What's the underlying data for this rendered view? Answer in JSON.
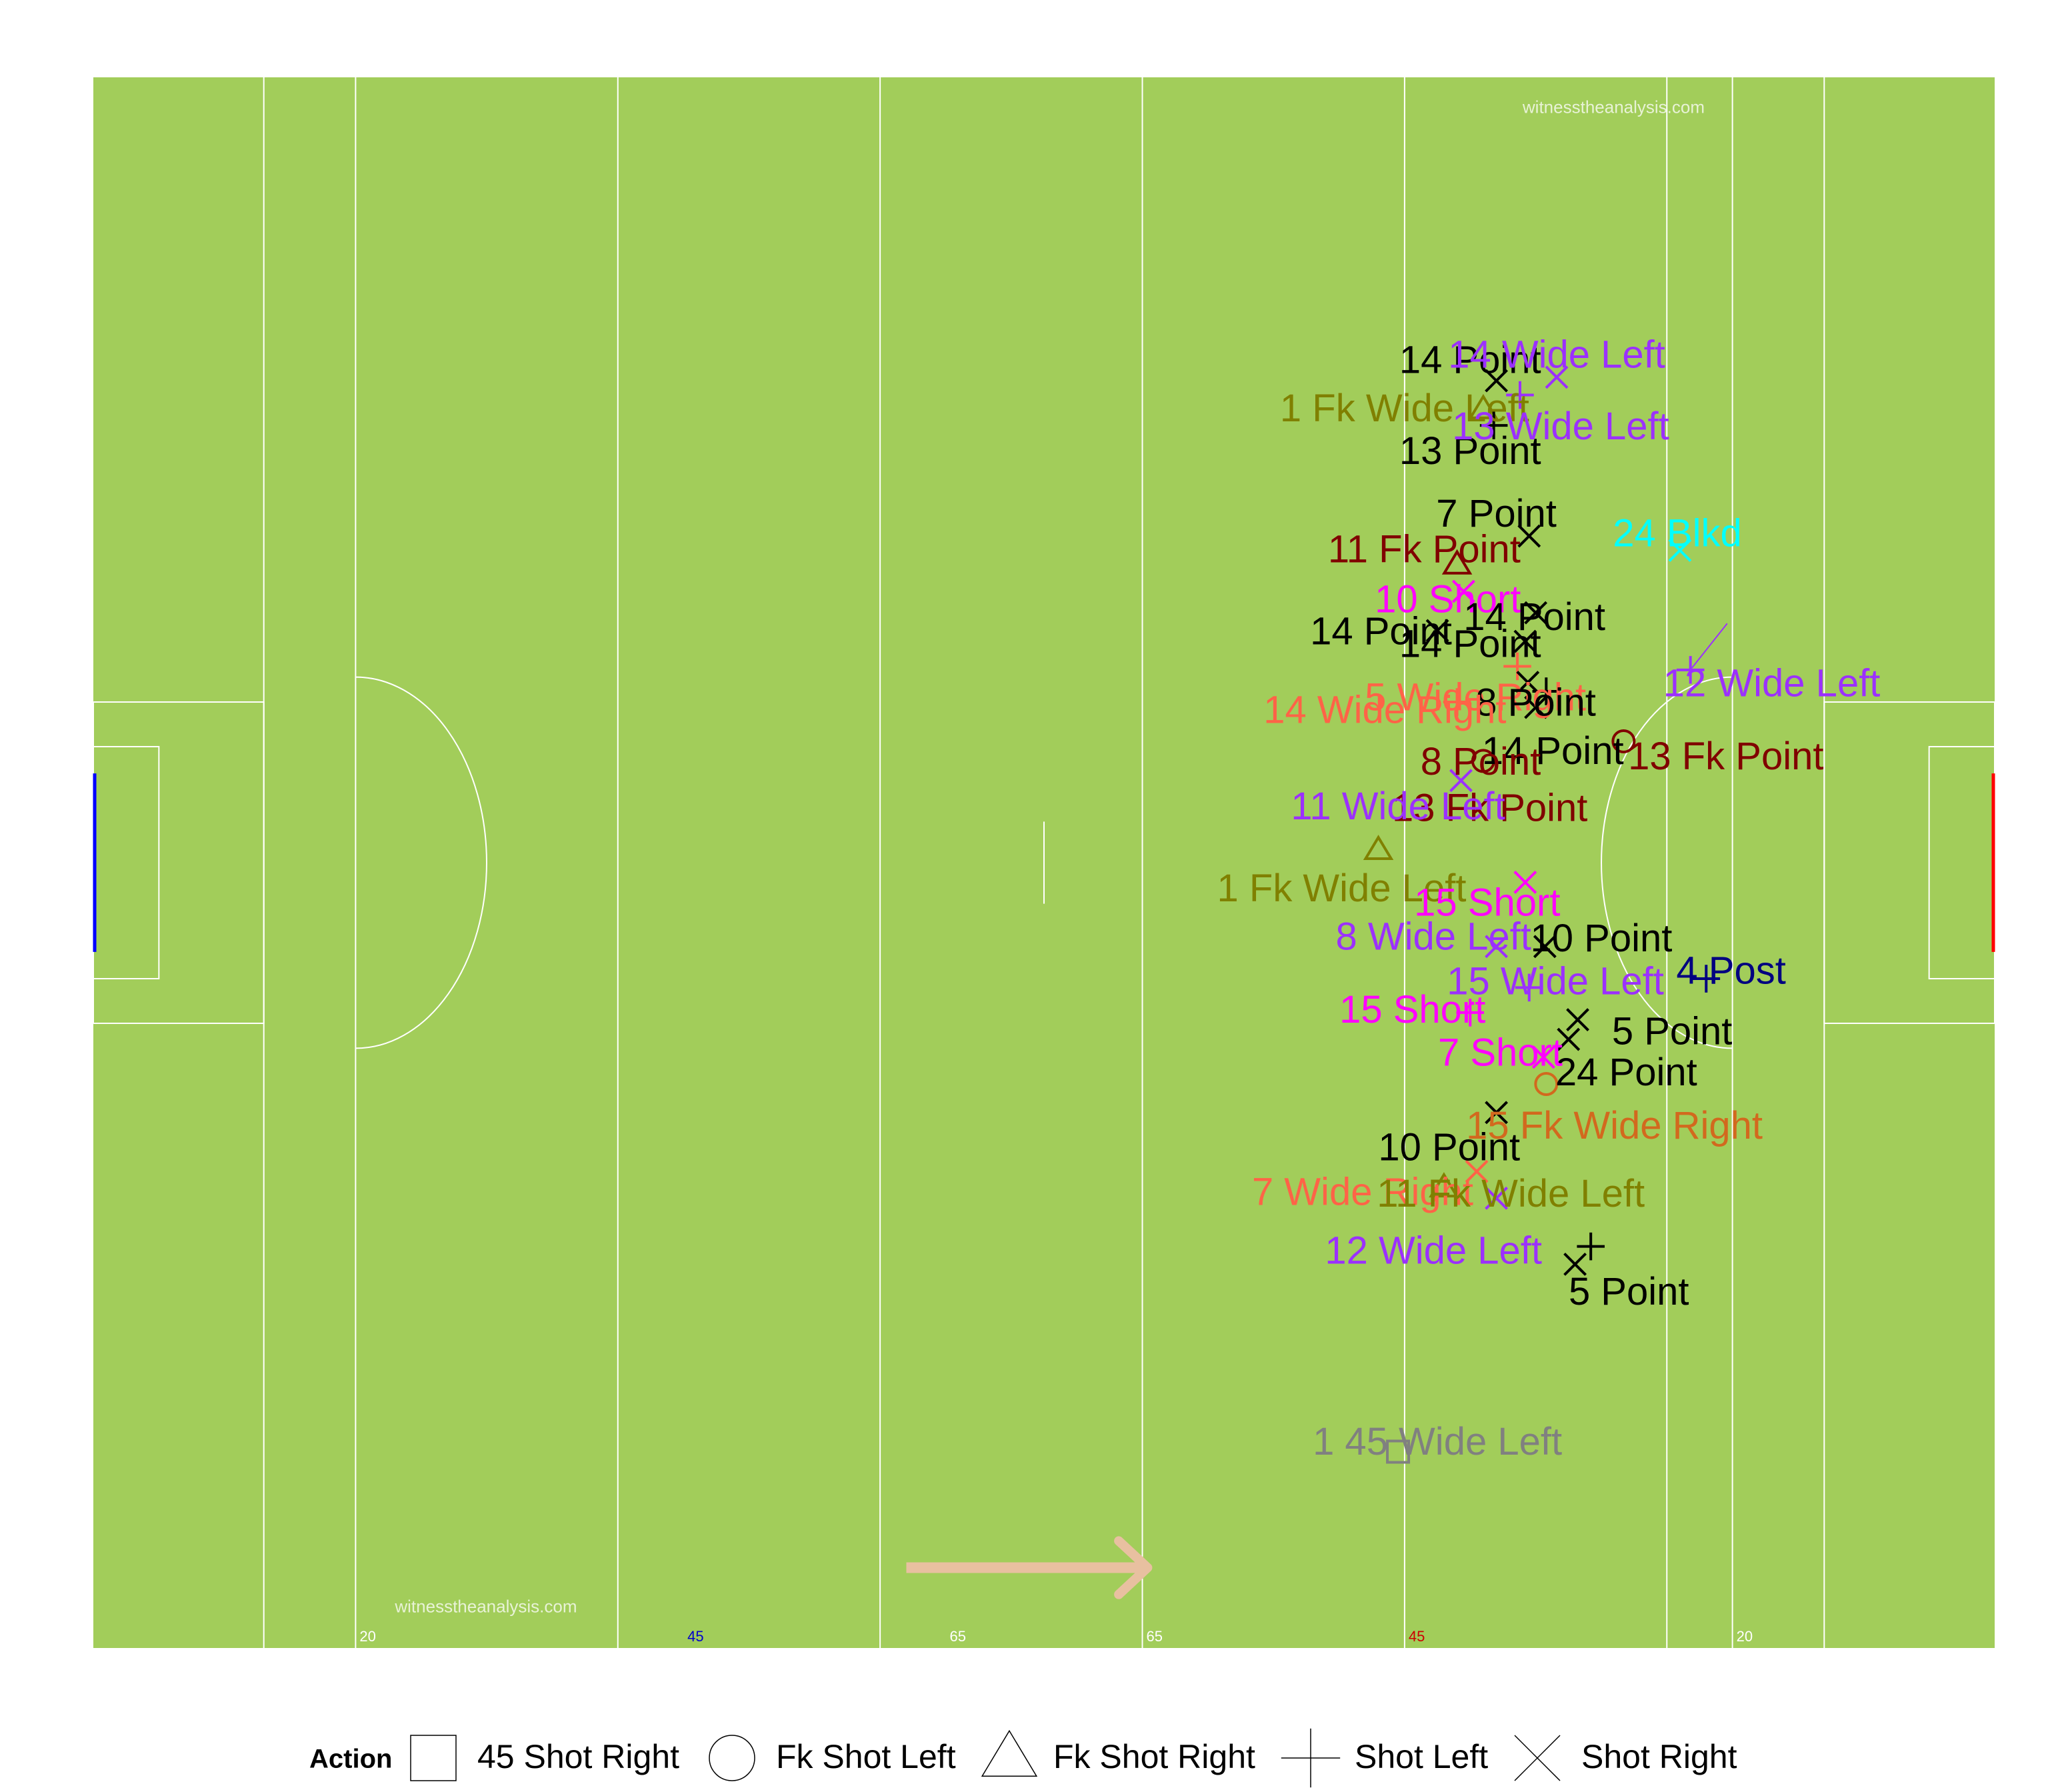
{
  "chart_data": {
    "type": "scatter",
    "pitch": {
      "line_labels": [
        {
          "text": "20",
          "x": 20,
          "color": "#ffffff"
        },
        {
          "text": "45",
          "x": 45,
          "color": "#0000cc"
        },
        {
          "text": "65",
          "x": 65,
          "color": "#ffffff"
        },
        {
          "text": "65",
          "x": 80,
          "color": "#ffffff"
        },
        {
          "text": "45",
          "x": 100,
          "color": "#cc0000"
        },
        {
          "text": "20",
          "x": 125,
          "color": "#ffffff"
        }
      ],
      "watermarks": [
        {
          "text": "witnesstheanalysis.com",
          "x": 109,
          "y": 86
        },
        {
          "text": "witnesstheanalysis.com",
          "x": 23,
          "y": 2
        }
      ]
    },
    "xlim": [
      0,
      145
    ],
    "ylim": [
      0,
      88
    ],
    "legend": {
      "title": "Action",
      "position": "bottom",
      "entries": [
        {
          "label": "45 Shot Right",
          "shape": "square"
        },
        {
          "label": "Fk Shot Left",
          "shape": "circle"
        },
        {
          "label": "Fk Shot Right",
          "shape": "triangle"
        },
        {
          "label": "Shot Left",
          "shape": "plus"
        },
        {
          "label": "Shot Right",
          "shape": "cross"
        }
      ]
    },
    "points": [
      {
        "x": 107.0,
        "y": 71.0,
        "shape": "cross",
        "color": "#000000",
        "label": "14 Point",
        "lx": 105.0,
        "ly": 72.0,
        "anchor": "middle"
      },
      {
        "x": 111.6,
        "y": 71.2,
        "shape": "cross",
        "color": "#9b30ff",
        "label": "14 Wide Left",
        "lx": 111.6,
        "ly": 72.3,
        "anchor": "middle"
      },
      {
        "x": 108.8,
        "y": 70.2,
        "shape": "plus",
        "color": "#9b30ff",
        "label": "",
        "lx": 0,
        "ly": 0,
        "anchor": "middle"
      },
      {
        "x": 106.0,
        "y": 69.4,
        "shape": "triangle",
        "color": "#808000",
        "label": "1 Fk Wide Left",
        "lx": 100.0,
        "ly": 69.3,
        "anchor": "middle"
      },
      {
        "x": 106.8,
        "y": 68.5,
        "shape": "plus",
        "color": "#000000",
        "label": "13 Point",
        "lx": 105.0,
        "ly": 66.9,
        "anchor": "middle"
      },
      {
        "x": 0,
        "y": 0,
        "shape": "none",
        "color": "#9b30ff",
        "label": "13 Wide Left",
        "lx": 111.9,
        "ly": 68.3,
        "anchor": "middle"
      },
      {
        "x": 109.5,
        "y": 62.3,
        "shape": "cross",
        "color": "#000000",
        "label": "7 Point",
        "lx": 107.0,
        "ly": 63.4,
        "anchor": "middle"
      },
      {
        "x": 121.0,
        "y": 61.5,
        "shape": "cross",
        "color": "#00ffff",
        "label": "24 Blkd",
        "lx": 120.8,
        "ly": 62.3,
        "anchor": "middle"
      },
      {
        "x": 104.0,
        "y": 60.7,
        "shape": "triangle",
        "color": "#800000",
        "label": "11 Fk Point",
        "lx": 101.5,
        "ly": 61.4,
        "anchor": "middle"
      },
      {
        "x": 104.5,
        "y": 59.2,
        "shape": "cross",
        "color": "#ff00ff",
        "label": "10 Short",
        "lx": 103.3,
        "ly": 58.6,
        "anchor": "middle"
      },
      {
        "x": 110.0,
        "y": 58.0,
        "shape": "cross",
        "color": "#000000",
        "label": "14 Point",
        "lx": 109.9,
        "ly": 57.6,
        "anchor": "middle"
      },
      {
        "x": 102.5,
        "y": 57.0,
        "shape": "cross",
        "color": "#000000",
        "label": "14 Point",
        "lx": 98.2,
        "ly": 56.8,
        "anchor": "middle"
      },
      {
        "x": 109.2,
        "y": 56.4,
        "shape": "cross",
        "color": "#000000",
        "label": "14 Point",
        "lx": 105.0,
        "ly": 56.1,
        "anchor": "middle"
      },
      {
        "x": 119.2,
        "y": 55.8,
        "shape": "none",
        "color": "#9b30ff",
        "label": "12 Wide Left",
        "lx": 128.0,
        "ly": 53.9,
        "anchor": "middle"
      },
      {
        "x": 121.8,
        "y": 54.8,
        "shape": "plus",
        "color": "#9b30ff",
        "label": "",
        "lx": 0,
        "ly": 0,
        "anchor": "middle"
      },
      {
        "x": 108.6,
        "y": 55.0,
        "shape": "plus",
        "color": "#ff6347",
        "label": "5 Wide Right",
        "lx": 105.4,
        "ly": 53.1,
        "anchor": "middle"
      },
      {
        "x": 109.4,
        "y": 54.1,
        "shape": "cross",
        "color": "#000000",
        "label": "8 Point",
        "lx": 110.0,
        "ly": 52.8,
        "anchor": "middle"
      },
      {
        "x": 110.8,
        "y": 53.6,
        "shape": "plus",
        "color": "#000000",
        "label": "14 Point",
        "lx": 111.3,
        "ly": 50.1,
        "anchor": "middle"
      },
      {
        "x": 110.0,
        "y": 52.7,
        "shape": "cross",
        "color": "#000000",
        "label": "",
        "lx": 0,
        "ly": 0,
        "anchor": "middle"
      },
      {
        "x": 104.0,
        "y": 53.0,
        "shape": "plus",
        "color": "#ff6347",
        "label": "14 Wide Right",
        "lx": 98.5,
        "ly": 52.4,
        "anchor": "middle"
      },
      {
        "x": 106.0,
        "y": 49.7,
        "shape": "circle",
        "color": "#800000",
        "label": "8 Point",
        "lx": 105.8,
        "ly": 49.5,
        "anchor": "middle"
      },
      {
        "x": 116.7,
        "y": 50.8,
        "shape": "circle",
        "color": "#800000",
        "label": "13 Fk Point",
        "lx": 124.5,
        "ly": 49.8,
        "anchor": "middle"
      },
      {
        "x": 0,
        "y": 0,
        "shape": "none",
        "color": "#800000",
        "label": "13 Fk Point",
        "lx": 106.5,
        "ly": 46.9,
        "anchor": "middle"
      },
      {
        "x": 104.3,
        "y": 48.6,
        "shape": "cross",
        "color": "#9b30ff",
        "label": "11 Wide Left",
        "lx": 99.5,
        "ly": 47.0,
        "anchor": "middle"
      },
      {
        "x": 98.0,
        "y": 44.7,
        "shape": "triangle",
        "color": "#808000",
        "label": "1 Fk Wide Left",
        "lx": 95.2,
        "ly": 42.4,
        "anchor": "middle"
      },
      {
        "x": 109.2,
        "y": 42.9,
        "shape": "cross",
        "color": "#ff00ff",
        "label": "15 Short",
        "lx": 106.3,
        "ly": 41.6,
        "anchor": "middle"
      },
      {
        "x": 107.0,
        "y": 39.3,
        "shape": "cross",
        "color": "#9b30ff",
        "label": "8 Wide Left",
        "lx": 102.2,
        "ly": 39.7,
        "anchor": "middle"
      },
      {
        "x": 110.7,
        "y": 39.3,
        "shape": "cross",
        "color": "#000000",
        "label": "10 Point",
        "lx": 115.0,
        "ly": 39.6,
        "anchor": "middle"
      },
      {
        "x": 123.0,
        "y": 37.5,
        "shape": "plus",
        "color": "#000080",
        "label": "4 Post",
        "lx": 124.9,
        "ly": 37.8,
        "anchor": "middle"
      },
      {
        "x": 109.5,
        "y": 37.0,
        "shape": "plus",
        "color": "#9b30ff",
        "label": "15 Wide Left",
        "lx": 111.5,
        "ly": 37.2,
        "anchor": "middle"
      },
      {
        "x": 105.0,
        "y": 35.6,
        "shape": "plus",
        "color": "#ff00ff",
        "label": "15 Short",
        "lx": 100.6,
        "ly": 35.6,
        "anchor": "middle"
      },
      {
        "x": 113.2,
        "y": 35.2,
        "shape": "cross",
        "color": "#000000",
        "label": "5 Point",
        "lx": 120.4,
        "ly": 34.4,
        "anchor": "middle"
      },
      {
        "x": 112.5,
        "y": 34.1,
        "shape": "cross",
        "color": "#000000",
        "label": "24 Point",
        "lx": 116.9,
        "ly": 32.1,
        "anchor": "middle"
      },
      {
        "x": 110.6,
        "y": 33.1,
        "shape": "cross",
        "color": "#ff00ff",
        "label": "7 Short",
        "lx": 107.3,
        "ly": 33.2,
        "anchor": "middle"
      },
      {
        "x": 110.8,
        "y": 31.6,
        "shape": "circle",
        "color": "#d2691e",
        "label": "15 Fk Wide Right",
        "lx": 116.0,
        "ly": 29.1,
        "anchor": "middle"
      },
      {
        "x": 107.0,
        "y": 30.0,
        "shape": "cross",
        "color": "#000000",
        "label": "10 Point",
        "lx": 103.4,
        "ly": 27.9,
        "anchor": "middle"
      },
      {
        "x": 105.5,
        "y": 26.7,
        "shape": "cross",
        "color": "#ff6347",
        "label": "7 Wide Right",
        "lx": 96.8,
        "ly": 25.4,
        "anchor": "middle"
      },
      {
        "x": 103.0,
        "y": 25.8,
        "shape": "triangle",
        "color": "#808000",
        "label": "11 Fk Wide Left",
        "lx": 108.1,
        "ly": 25.3,
        "anchor": "middle"
      },
      {
        "x": 107.0,
        "y": 25.2,
        "shape": "cross",
        "color": "#9b30ff",
        "label": "12 Wide Left",
        "lx": 102.2,
        "ly": 22.1,
        "anchor": "middle"
      },
      {
        "x": 114.2,
        "y": 22.5,
        "shape": "plus",
        "color": "#000000",
        "label": "5 Point",
        "lx": 117.1,
        "ly": 19.8,
        "anchor": "middle"
      },
      {
        "x": 113.0,
        "y": 21.5,
        "shape": "cross",
        "color": "#000000",
        "label": "",
        "lx": 0,
        "ly": 0,
        "anchor": "middle"
      },
      {
        "x": 99.5,
        "y": 11.0,
        "shape": "square",
        "color": "#808080",
        "label": "1 45 Wide Left",
        "lx": 102.5,
        "ly": 11.4,
        "anchor": "middle"
      }
    ]
  }
}
